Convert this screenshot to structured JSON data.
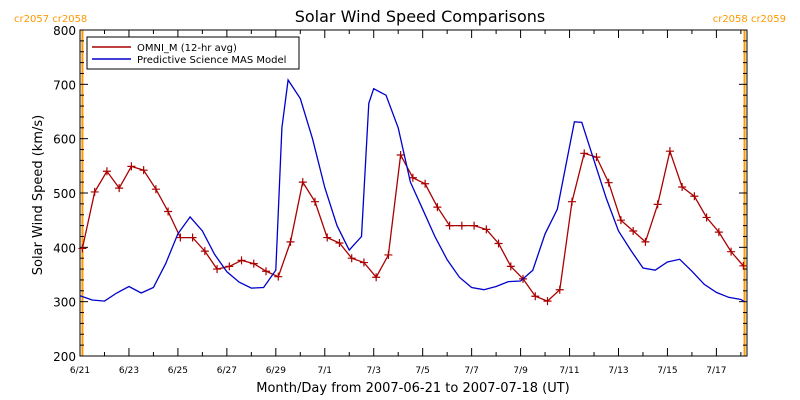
{
  "chart_data": {
    "type": "line",
    "title": "Solar Wind Speed Comparisons",
    "xlabel": "Month/Day from 2007-06-21 to 2007-07-18 (UT)",
    "ylabel": "Solar Wind Speed (km/s)",
    "xlim": [
      0,
      27.25
    ],
    "ylim": [
      200,
      800
    ],
    "y_ticks": [
      200,
      300,
      400,
      500,
      600,
      700,
      800
    ],
    "x_ticks": [
      {
        "day": 0,
        "label": "6/21"
      },
      {
        "day": 2,
        "label": "6/23"
      },
      {
        "day": 4,
        "label": "6/25"
      },
      {
        "day": 6,
        "label": "6/27"
      },
      {
        "day": 8,
        "label": "6/29"
      },
      {
        "day": 10,
        "label": "7/1"
      },
      {
        "day": 12,
        "label": "7/3"
      },
      {
        "day": 14,
        "label": "7/5"
      },
      {
        "day": 16,
        "label": "7/7"
      },
      {
        "day": 18,
        "label": "7/9"
      },
      {
        "day": 20,
        "label": "7/11"
      },
      {
        "day": 22,
        "label": "7/13"
      },
      {
        "day": 24,
        "label": "7/15"
      },
      {
        "day": 26,
        "label": "7/17"
      }
    ],
    "carrington_markers": [
      {
        "day": 0.1,
        "left_label": "cr2057",
        "right_label": "cr2058",
        "align": "left"
      },
      {
        "day": 27.15,
        "left_label": "cr2058",
        "right_label": "cr2059",
        "align": "right"
      }
    ],
    "legend": {
      "position": "top-left"
    },
    "series": [
      {
        "name": "OMNI_M (12-hr avg)",
        "color": "#aa0000",
        "marker": "plus",
        "x": [
          0.1,
          0.6,
          1.1,
          1.6,
          2.1,
          2.6,
          3.1,
          3.6,
          4.1,
          4.6,
          5.1,
          5.6,
          6.1,
          6.6,
          7.1,
          7.6,
          8.1,
          8.6,
          9.1,
          9.6,
          10.1,
          10.6,
          11.1,
          11.6,
          12.1,
          12.6,
          13.1,
          13.6,
          14.1,
          14.6,
          15.1,
          15.6,
          16.1,
          16.6,
          17.1,
          17.6,
          18.1,
          18.6,
          19.1,
          19.6,
          20.1,
          20.6,
          21.1,
          21.6,
          22.1,
          22.6,
          23.1,
          23.6,
          24.1,
          24.6,
          25.1,
          25.6,
          26.1,
          26.6,
          27.1
        ],
        "y": [
          398,
          502,
          540,
          509,
          549,
          542,
          507,
          466,
          418,
          418,
          393,
          360,
          365,
          376,
          370,
          356,
          346,
          410,
          520,
          484,
          418,
          408,
          380,
          372,
          345,
          386,
          570,
          528,
          517,
          474,
          440,
          440,
          440,
          433,
          407,
          365,
          342,
          310,
          301,
          322,
          484,
          573,
          566,
          519,
          450,
          430,
          410,
          479,
          577,
          511,
          494,
          455,
          428,
          392,
          366
        ]
      },
      {
        "name": "Predictive Science MAS Model",
        "color": "#0000cc",
        "marker": "none",
        "x": [
          0,
          0.5,
          1.0,
          1.5,
          2.0,
          2.5,
          3.0,
          3.5,
          4.0,
          4.5,
          5.0,
          5.5,
          6.0,
          6.5,
          7.0,
          7.5,
          8.0,
          8.25,
          8.5,
          9.0,
          9.5,
          10.0,
          10.5,
          11.0,
          11.5,
          11.8,
          12.0,
          12.5,
          13.0,
          13.5,
          14.0,
          14.5,
          15.0,
          15.5,
          16.0,
          16.5,
          17.0,
          17.5,
          18.0,
          18.5,
          19.0,
          19.5,
          20.0,
          20.2,
          20.5,
          21.0,
          21.5,
          22.0,
          22.5,
          23.0,
          23.5,
          24.0,
          24.5,
          25.0,
          25.5,
          26.0,
          26.5,
          27.0,
          27.15
        ],
        "y": [
          311,
          303,
          301,
          316,
          328,
          316,
          326,
          370,
          425,
          456,
          430,
          387,
          355,
          336,
          325,
          326,
          358,
          620,
          708,
          674,
          600,
          510,
          440,
          395,
          420,
          665,
          692,
          680,
          620,
          520,
          470,
          420,
          377,
          345,
          326,
          322,
          328,
          337,
          338,
          358,
          425,
          470,
          585,
          631,
          630,
          560,
          490,
          430,
          395,
          362,
          358,
          373,
          378,
          356,
          332,
          317,
          308,
          304,
          300
        ]
      }
    ]
  }
}
